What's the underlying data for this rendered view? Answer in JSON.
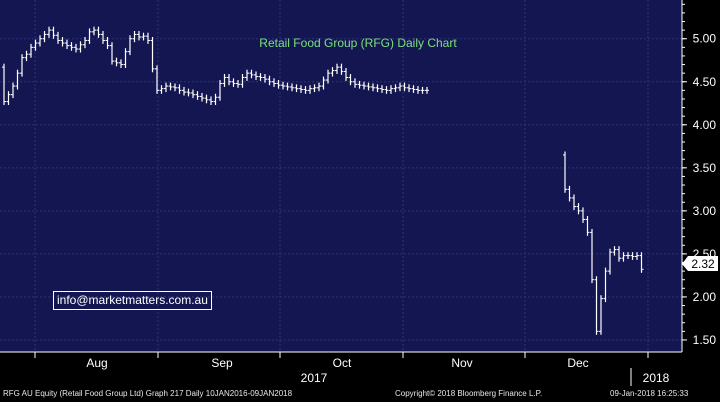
{
  "chart_data": {
    "type": "ohlc",
    "title": "Retail Food Group (RFG) Daily Chart",
    "annotation": "info@marketmatters.com.au",
    "last_price_label": "2.32",
    "y_ticks": [
      "1.50",
      "2.00",
      "2.50",
      "3.00",
      "3.50",
      "4.00",
      "4.50",
      "5.00"
    ],
    "ylim": [
      1.36,
      5.45
    ],
    "months": [
      "Aug",
      "Sep",
      "Oct",
      "Nov",
      "Dec"
    ],
    "years": [
      "2017",
      "2018"
    ],
    "grid": true,
    "colors": {
      "background": "#000000",
      "plot": "#141651",
      "bars": "#ffffff",
      "title": "#7de07d",
      "text": "#ffffff"
    },
    "closes": [
      4.27,
      4.35,
      4.45,
      4.6,
      4.78,
      4.82,
      4.9,
      4.95,
      5.0,
      5.05,
      5.1,
      5.04,
      4.98,
      4.95,
      4.92,
      4.9,
      4.88,
      4.93,
      4.98,
      5.08,
      5.1,
      5.05,
      4.98,
      4.92,
      4.74,
      4.72,
      4.7,
      4.85,
      5.0,
      5.05,
      5.02,
      5.03,
      4.98,
      4.65,
      4.4,
      4.42,
      4.45,
      4.44,
      4.43,
      4.4,
      4.38,
      4.37,
      4.35,
      4.33,
      4.31,
      4.29,
      4.27,
      4.32,
      4.48,
      4.55,
      4.5,
      4.48,
      4.47,
      4.55,
      4.6,
      4.58,
      4.56,
      4.55,
      4.53,
      4.5,
      4.48,
      4.46,
      4.45,
      4.44,
      4.43,
      4.42,
      4.41,
      4.4,
      4.42,
      4.43,
      4.45,
      4.52,
      4.6,
      4.63,
      4.67,
      4.62,
      4.55,
      4.5,
      4.47,
      4.46,
      4.45,
      4.44,
      4.43,
      4.42,
      4.41,
      4.4,
      4.42,
      4.43,
      4.45,
      4.43,
      4.42,
      4.41,
      4.4,
      4.4,
      4.4,
      3.25,
      3.15,
      3.05,
      3.0,
      2.9,
      2.75,
      2.2,
      1.6,
      1.98,
      2.3,
      2.52,
      2.55,
      2.45,
      2.48,
      2.48,
      2.47,
      2.48,
      2.32
    ],
    "gap_after": 94
  },
  "footer": {
    "left": "RFG AU Equity (Retail Food Group Ltd) Graph 217  Daily 10JAN2016-09JAN2018",
    "center": "Copyright© 2018 Bloomberg Finance L.P.",
    "right": "09-Jan-2018 16:25:33"
  }
}
